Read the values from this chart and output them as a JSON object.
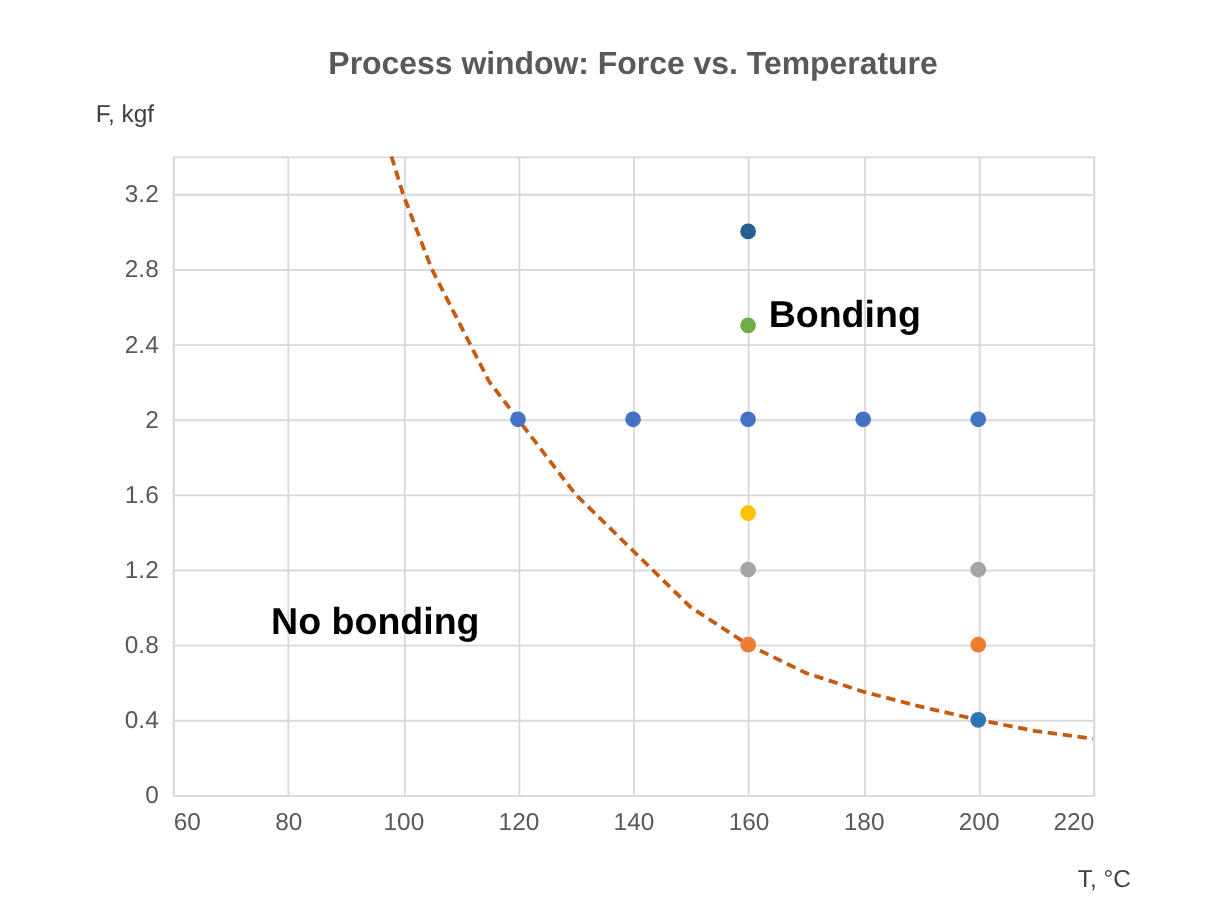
{
  "chart_data": {
    "type": "scatter",
    "title": "Process window: Force vs. Temperature",
    "xlabel": "T, °C",
    "ylabel": "F, kgf",
    "xlim": [
      60,
      220
    ],
    "xticks": [
      60,
      80,
      100,
      120,
      140,
      160,
      180,
      200,
      220
    ],
    "ylim": [
      0,
      3.4
    ],
    "yticks": [
      0,
      0.4,
      0.8,
      1.2,
      1.6,
      2,
      2.4,
      2.8,
      3.2
    ],
    "grid": true,
    "marker": "circle",
    "series": [
      {
        "type": "line",
        "line_style": "dashed",
        "marker": "none",
        "color": "#c55a11",
        "x": [
          98,
          100,
          105,
          110,
          115,
          120,
          130,
          140,
          150,
          160,
          170,
          180,
          190,
          200,
          210,
          220
        ],
        "values": [
          3.4,
          3.2,
          2.8,
          2.5,
          2.2,
          2,
          1.6,
          1.3,
          1.0,
          0.8,
          0.65,
          0.55,
          0.47,
          0.4,
          0.34,
          0.3
        ]
      },
      {
        "color": "#255e91",
        "x": [
          160
        ],
        "values": [
          3.0
        ]
      },
      {
        "color": "#70ad47",
        "x": [
          160
        ],
        "values": [
          2.5
        ]
      },
      {
        "color": "#4472c4",
        "x": [
          120,
          140,
          160,
          180,
          200
        ],
        "values": [
          2,
          2,
          2,
          2,
          2
        ]
      },
      {
        "color": "#ffc000",
        "x": [
          160
        ],
        "values": [
          1.5
        ]
      },
      {
        "color": "#a5a5a5",
        "x": [
          160,
          200
        ],
        "values": [
          1.2,
          1.2
        ]
      },
      {
        "color": "#ed7d31",
        "x": [
          160,
          200
        ],
        "values": [
          0.8,
          0.8
        ]
      },
      {
        "color": "#2e75b6",
        "x": [
          200
        ],
        "values": [
          0.4
        ]
      }
    ],
    "annotations": [
      "Bonding",
      "No bonding"
    ]
  }
}
